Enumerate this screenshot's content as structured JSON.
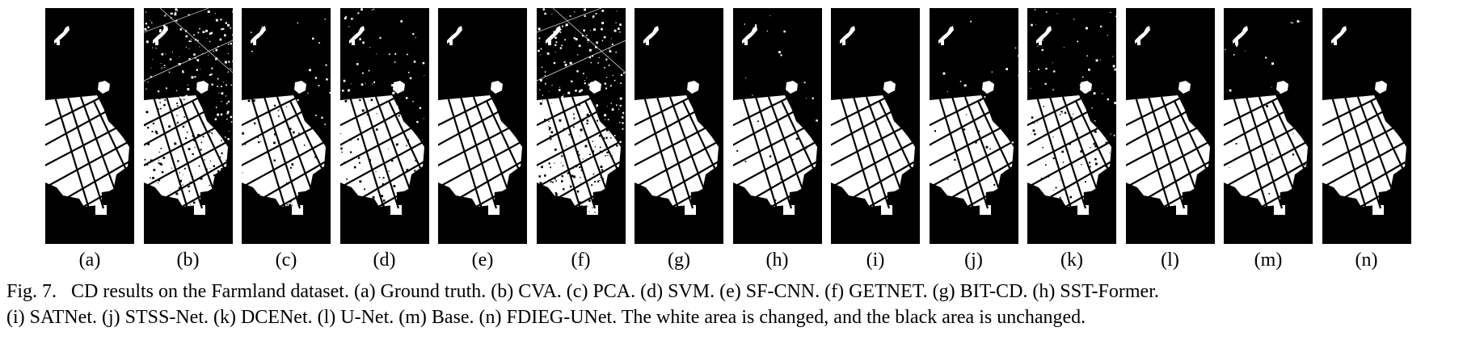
{
  "figure": {
    "panels": [
      {
        "label": "(a)",
        "method": "Ground truth",
        "noise": "none"
      },
      {
        "label": "(b)",
        "method": "CVA",
        "noise": "heavy"
      },
      {
        "label": "(c)",
        "method": "PCA",
        "noise": "sparse"
      },
      {
        "label": "(d)",
        "method": "SVM",
        "noise": "moderate"
      },
      {
        "label": "(e)",
        "method": "SF-CNN",
        "noise": "none"
      },
      {
        "label": "(f)",
        "method": "GETNET",
        "noise": "heavy"
      },
      {
        "label": "(g)",
        "method": "BIT-CD",
        "noise": "none"
      },
      {
        "label": "(h)",
        "method": "SST-Former",
        "noise": "light"
      },
      {
        "label": "(i)",
        "method": "SATNet",
        "noise": "none"
      },
      {
        "label": "(j)",
        "method": "STSS-Net",
        "noise": "light"
      },
      {
        "label": "(k)",
        "method": "DCENet",
        "noise": "moderate"
      },
      {
        "label": "(l)",
        "method": "U-Net",
        "noise": "none"
      },
      {
        "label": "(m)",
        "method": "Base",
        "noise": "light"
      },
      {
        "label": "(n)",
        "method": "FDIEG-UNet",
        "noise": "none"
      }
    ],
    "colors": {
      "changed": "#ffffff",
      "unchanged": "#000000"
    }
  },
  "caption": {
    "fig_number": "Fig. 7.",
    "line1": "CD results on the Farmland dataset. (a) Ground truth. (b) CVA. (c) PCA. (d) SVM. (e) SF-CNN. (f) GETNET. (g) BIT-CD. (h) SST-Former.",
    "line2": "(i) SATNet. (j) STSS-Net. (k) DCENet. (l) U-Net. (m) Base. (n) FDIEG-UNet. The white area is changed, and the black area is unchanged."
  }
}
